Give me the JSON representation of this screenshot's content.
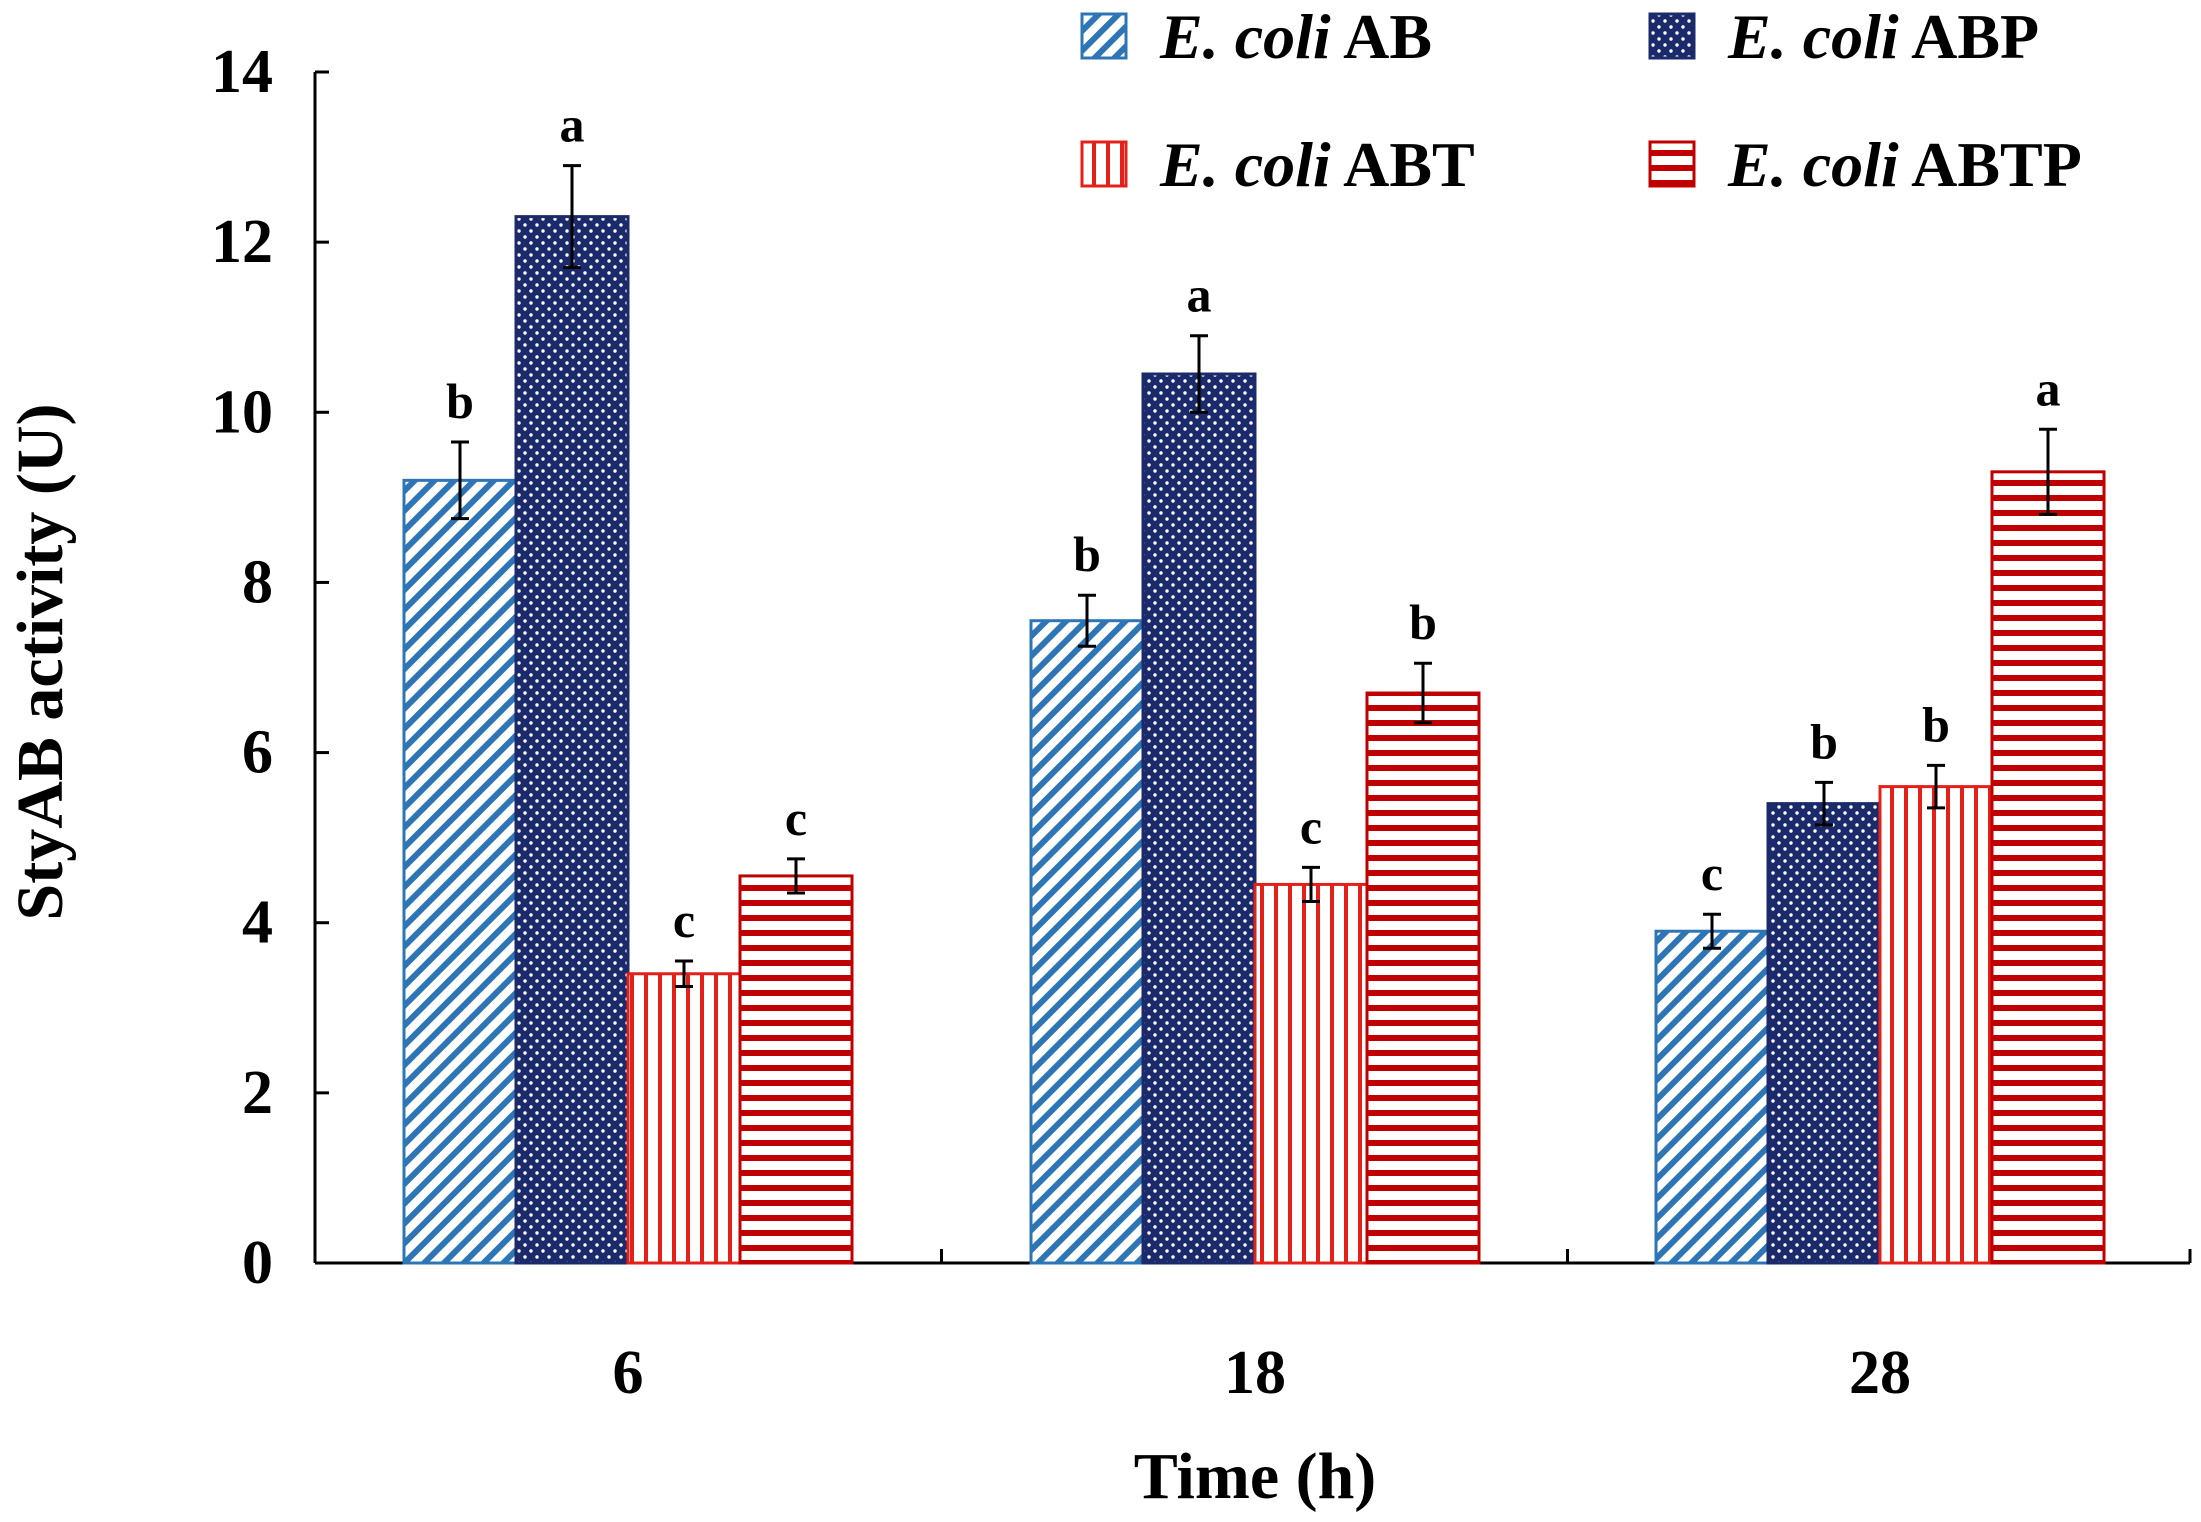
{
  "chart_data": {
    "type": "bar",
    "xlabel": "Time (h)",
    "ylabel": "StyAB activity (U)",
    "ylim": [
      0,
      14
    ],
    "yticks": [
      "0",
      "2",
      "4",
      "6",
      "8",
      "10",
      "12",
      "14"
    ],
    "categories": [
      "6",
      "18",
      "28"
    ],
    "legend_position": "top-right",
    "series": [
      {
        "prefix": "E. coli",
        "name": "AB",
        "pattern": "diagonal",
        "color": "#2E75B6",
        "values": [
          9.2,
          7.55,
          3.9
        ],
        "errors": [
          0.45,
          0.3,
          0.2
        ],
        "letters": [
          "b",
          "b",
          "c"
        ]
      },
      {
        "prefix": "E. coli",
        "name": "ABP",
        "pattern": "dots",
        "color": "#1B2A6B",
        "values": [
          12.3,
          10.45,
          5.4
        ],
        "errors": [
          0.6,
          0.45,
          0.25
        ],
        "letters": [
          "a",
          "a",
          "b"
        ]
      },
      {
        "prefix": "E. coli",
        "name": "ABT",
        "pattern": "vertical",
        "color": "#E32119",
        "values": [
          3.4,
          4.45,
          5.6
        ],
        "errors": [
          0.15,
          0.2,
          0.25
        ],
        "letters": [
          "c",
          "c",
          "b"
        ]
      },
      {
        "prefix": "E. coli",
        "name": "ABTP",
        "pattern": "horizontal",
        "color": "#C00000",
        "values": [
          4.55,
          6.7,
          9.3
        ],
        "errors": [
          0.2,
          0.35,
          0.5
        ],
        "letters": [
          "c",
          "b",
          "a"
        ]
      }
    ]
  }
}
